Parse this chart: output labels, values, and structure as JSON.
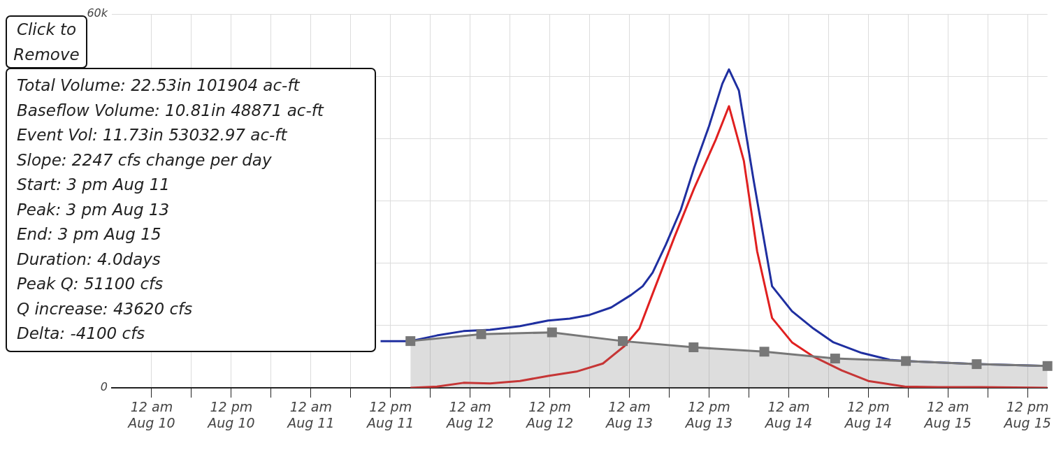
{
  "chart_data": {
    "type": "line",
    "xlim": [
      "--08-09T18:00",
      "--08-15T15:00"
    ],
    "xticks": [
      {
        "value": "--08-10T00:00",
        "label": "12 am\nAug 10"
      },
      {
        "value": "--08-10T06:00",
        "label": null
      },
      {
        "value": "--08-10T12:00",
        "label": "12 pm\nAug 10"
      },
      {
        "value": "--08-10T18:00",
        "label": null
      },
      {
        "value": "--08-11T00:00",
        "label": "12 am\nAug 11"
      },
      {
        "value": "--08-11T06:00",
        "label": null
      },
      {
        "value": "--08-11T12:00",
        "label": "12 pm\nAug 11"
      },
      {
        "value": "--08-11T18:00",
        "label": null
      },
      {
        "value": "--08-12T00:00",
        "label": "12 am\nAug 12"
      },
      {
        "value": "--08-12T06:00",
        "label": null
      },
      {
        "value": "--08-12T12:00",
        "label": "12 pm\nAug 12"
      },
      {
        "value": "--08-12T18:00",
        "label": null
      },
      {
        "value": "--08-13T00:00",
        "label": "12 am\nAug 13"
      },
      {
        "value": "--08-13T06:00",
        "label": null
      },
      {
        "value": "--08-13T12:00",
        "label": "12 pm\nAug 13"
      },
      {
        "value": "--08-13T18:00",
        "label": null
      },
      {
        "value": "--08-14T00:00",
        "label": "12 am\nAug 14"
      },
      {
        "value": "--08-14T06:00",
        "label": null
      },
      {
        "value": "--08-14T12:00",
        "label": "12 pm\nAug 14"
      },
      {
        "value": "--08-14T18:00",
        "label": null
      },
      {
        "value": "--08-15T00:00",
        "label": "12 am\nAug 15"
      },
      {
        "value": "--08-15T06:00",
        "label": null
      },
      {
        "value": "--08-15T12:00",
        "label": "12 pm\nAug 15"
      }
    ],
    "ylim": [
      0,
      60000
    ],
    "yticks": [
      0,
      {
        "value": 10000,
        "label": null
      },
      {
        "value": 20000,
        "label": null
      },
      {
        "value": 30000,
        "label": null
      },
      {
        "value": 40000,
        "label": null
      },
      {
        "value": 50000,
        "label": null
      },
      {
        "value": 60000,
        "label": "60k"
      }
    ],
    "grid": true,
    "legend": false,
    "series": [
      {
        "type": "area",
        "color": "#777777",
        "marker": "square",
        "x": [
          "--08-11T15:00",
          "--08-12T01:40",
          "--08-12T12:20",
          "--08-12T23:00",
          "--08-13T09:40",
          "--08-13T20:20",
          "--08-14T07:00",
          "--08-14T17:40",
          "--08-15T04:20",
          "--08-15T15:00"
        ],
        "values": [
          7500,
          8600,
          8900,
          7500,
          6500,
          5800,
          4700,
          4300,
          3800,
          3500
        ]
      },
      {
        "type": "line",
        "color": "#e02020",
        "marker": "none",
        "x": [
          "--08-11T15:00",
          "--08-11T19:00",
          "--08-11T23:00",
          "--08-12T03:00",
          "--08-12T07:30",
          "--08-12T11:45",
          "--08-12T16:00",
          "--08-12T20:00",
          "--08-12T23:15",
          "--08-13T01:30",
          "--08-13T03:30",
          "--08-13T06:45",
          "--08-13T09:45",
          "--08-13T13:00",
          "--08-13T15:00",
          "--08-13T17:15",
          "--08-13T19:15",
          "--08-13T21:30",
          "--08-14T00:30",
          "--08-14T03:45",
          "--08-14T08:00",
          "--08-14T12:00",
          "--08-14T17:30",
          "--08-14T22:30",
          "--08-15T05:00",
          "--08-15T15:00"
        ],
        "values": [
          0,
          200,
          800,
          700,
          1100,
          1900,
          2600,
          3900,
          6700,
          9500,
          15100,
          24100,
          32000,
          39800,
          45200,
          36400,
          21900,
          11200,
          7300,
          5000,
          2800,
          1100,
          200,
          100,
          100,
          0
        ]
      },
      {
        "type": "line",
        "color": "#1f2fa0",
        "marker": "none",
        "x": [
          "--08-11T10:30",
          "--08-11T15:00",
          "--08-11T19:00",
          "--08-11T23:00",
          "--08-12T03:00",
          "--08-12T07:30",
          "--08-12T11:45",
          "--08-12T15:00",
          "--08-12T18:00",
          "--08-12T21:15",
          "--08-13T00:15",
          "--08-13T02:00",
          "--08-13T03:30",
          "--08-13T05:30",
          "--08-13T07:45",
          "--08-13T09:45",
          "--08-13T12:00",
          "--08-13T14:00",
          "--08-13T15:00",
          "--08-13T16:30",
          "--08-13T18:45",
          "--08-13T21:30",
          "--08-14T00:30",
          "--08-14T03:45",
          "--08-14T06:45",
          "--08-14T11:00",
          "--08-14T15:15",
          "--08-14T17:40",
          "--08-15T04:20",
          "--08-15T15:00"
        ],
        "values": [
          7500,
          7500,
          8400,
          9100,
          9300,
          9900,
          10800,
          11100,
          11700,
          12900,
          14900,
          16300,
          18500,
          23000,
          28600,
          35300,
          42000,
          48800,
          51100,
          47700,
          33100,
          16300,
          12300,
          9500,
          7300,
          5600,
          4500,
          4300,
          3800,
          3500
        ]
      }
    ],
    "annotations": [
      "Click to Remove",
      "Total Volume: 22.53in 101904 ac-ft\nBaseflow Volume: 10.81in 48871 ac-ft\nEvent Vol: 11.73in 53032.97 ac-ft\nSlope: 2247 cfs change per day\nStart: 3 pm Aug 11\nPeak: 3 pm Aug 13\nEnd: 3 pm Aug 15\nDuration: 4.0days\nPeak Q: 51100 cfs\nQ increase: 43620 cfs\nDelta: -4100 cfs"
    ]
  }
}
